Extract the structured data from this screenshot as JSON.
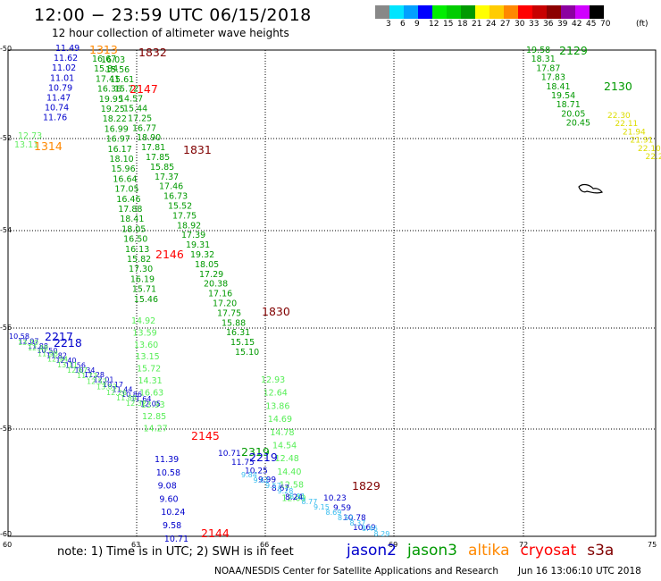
{
  "header": {
    "title": "12:00 − 23:59 UTC 06/15/2018",
    "subtitle": "12 hour collection of altimeter wave heights"
  },
  "legend": {
    "unit": "(ft)",
    "ticks": [
      "3",
      "6",
      "9",
      "12",
      "15",
      "18",
      "21",
      "24",
      "27",
      "30",
      "33",
      "36",
      "39",
      "42",
      "45",
      "70"
    ],
    "colors": [
      "#888888",
      "#00e5ff",
      "#00a0ff",
      "#0000ff",
      "#00ee00",
      "#00cc00",
      "#009a00",
      "#ffff00",
      "#ffcc00",
      "#ff8800",
      "#ff0000",
      "#c80000",
      "#8c0000",
      "#8c00a0",
      "#d000ff",
      "#000000"
    ]
  },
  "axes": {
    "lat_labels": [
      "-50",
      "-52",
      "-54",
      "-56",
      "-58",
      "-60"
    ],
    "lon_labels": [
      "60",
      "63",
      "66",
      "69",
      "72",
      "75"
    ]
  },
  "tracks": [
    {
      "values": [
        "11.49",
        "11.62",
        "11.02",
        "11.01",
        "10.79",
        "11.47",
        "10.74",
        "11.76"
      ],
      "color": "#0000cc"
    },
    {
      "values": [
        "12.73",
        "13.11"
      ],
      "color": "#66ee66"
    },
    {
      "values": [
        "16.03",
        "15.56",
        "15.61",
        "15.72",
        "14.57",
        "15.44",
        "17.25",
        "16.77",
        "18.90",
        "17.81",
        "17.85",
        "15.85",
        "17.37",
        "17.46",
        "16.73",
        "15.52",
        "17.75",
        "18.92",
        "17.39",
        "19.31",
        "19.32",
        "18.05",
        "17.29",
        "20.38",
        "17.16",
        "17.20",
        "17.75",
        "15.88",
        "16.31",
        "15.15",
        "15.10"
      ],
      "color": "#009900"
    },
    {
      "values": [
        "16.67",
        "15.84",
        "17.41",
        "16.36",
        "19.95",
        "19.25",
        "18.22",
        "16.99",
        "16.97",
        "16.17",
        "18.10",
        "15.96",
        "16.64",
        "17.05",
        "16.46",
        "17.88",
        "18.41",
        "18.05",
        "16.50",
        "16.13",
        "15.82",
        "17.30",
        "16.19",
        "15.71",
        "15.46"
      ],
      "color": "#009900"
    },
    {
      "values": [
        "14.92",
        "13.59",
        "13.60",
        "13.15",
        "15.72",
        "14.31",
        "16.63",
        "13.93",
        "12.85",
        "14.27"
      ],
      "color": "#55ee55"
    },
    {
      "values": [
        "12.93",
        "12.64",
        "13.86",
        "14.69",
        "14.78",
        "14.54",
        "12.48",
        "14.40",
        "12.58",
        "12.09"
      ],
      "color": "#55ee55"
    },
    {
      "values": [
        "11.39",
        "10.58",
        "9.08",
        "9.60",
        "10.24",
        "9.58",
        "10.71"
      ],
      "color": "#0000cc"
    },
    {
      "values": [
        "10.71",
        "11.75",
        "10.25",
        "9.99",
        "8.67",
        "8.24"
      ],
      "color": "#0000cc"
    },
    {
      "values": [
        "10.23",
        "9.59",
        "10.78",
        "10.69"
      ],
      "color": "#0000cc"
    },
    {
      "values": [
        "19.58",
        "18.31",
        "17.87",
        "17.83",
        "18.41",
        "19.54",
        "18.71",
        "20.05",
        "20.45"
      ],
      "color": "#009900"
    },
    {
      "values": [
        "22.30",
        "22.11",
        "21.94",
        "21.91",
        "22.10",
        "22.21"
      ],
      "color": "#dddd00"
    },
    {
      "values": [
        "10.58",
        "12.07",
        "11.88",
        "10.50",
        "11.82",
        "12.40",
        "11.56",
        "10.34",
        "11.28",
        "12.01",
        "10.17",
        "11.44",
        "10.86",
        "11.64",
        "12.05"
      ],
      "color": "#0000cc"
    },
    {
      "values": [
        "13.20",
        "12.48",
        "11.98",
        "12.94",
        "13.11",
        "12.67",
        "11.73",
        "12.52",
        "13.03",
        "12.26",
        "11.89",
        "12.32"
      ],
      "color": "#55ee55"
    },
    {
      "values": [
        "9.84",
        "9.62",
        "9.57",
        "9.28",
        "8.91",
        "8.77",
        "9.15",
        "8.69",
        "8.52",
        "8.37",
        "8.46",
        "8.29"
      ],
      "color": "#33bbee"
    }
  ],
  "passes": [
    {
      "text": "1832",
      "color": "#800000"
    },
    {
      "text": "1313",
      "color": "#ff8800"
    },
    {
      "text": "2147",
      "color": "#ff0000"
    },
    {
      "text": "1314",
      "color": "#ff8800"
    },
    {
      "text": "1831",
      "color": "#800000"
    },
    {
      "text": "2146",
      "color": "#ff0000"
    },
    {
      "text": "1830",
      "color": "#800000"
    },
    {
      "text": "2217",
      "color": "#0000cc"
    },
    {
      "text": "2218",
      "color": "#0000cc"
    },
    {
      "text": "2145",
      "color": "#ff0000"
    },
    {
      "text": "2319",
      "color": "#009900"
    },
    {
      "text": "2219",
      "color": "#0000cc"
    },
    {
      "text": "1829",
      "color": "#800000"
    },
    {
      "text": "2144",
      "color": "#ff0000"
    },
    {
      "text": "2129",
      "color": "#009900"
    },
    {
      "text": "2130",
      "color": "#009900"
    }
  ],
  "footer": {
    "note": "note: 1) Time is in UTC; 2) SWH is in feet",
    "satellites": [
      {
        "name": "jason2",
        "color": "#0000cc"
      },
      {
        "name": "jason3",
        "color": "#009900"
      },
      {
        "name": "altika",
        "color": "#ff8800"
      },
      {
        "name": "cryosat",
        "color": "#ff0000"
      },
      {
        "name": "s3a",
        "color": "#800000"
      }
    ],
    "credit": "NOAA/NESDIS Center for Satellite Applications and Research",
    "timestamp": "Jun 16 13:06:10 UTC 2018"
  }
}
